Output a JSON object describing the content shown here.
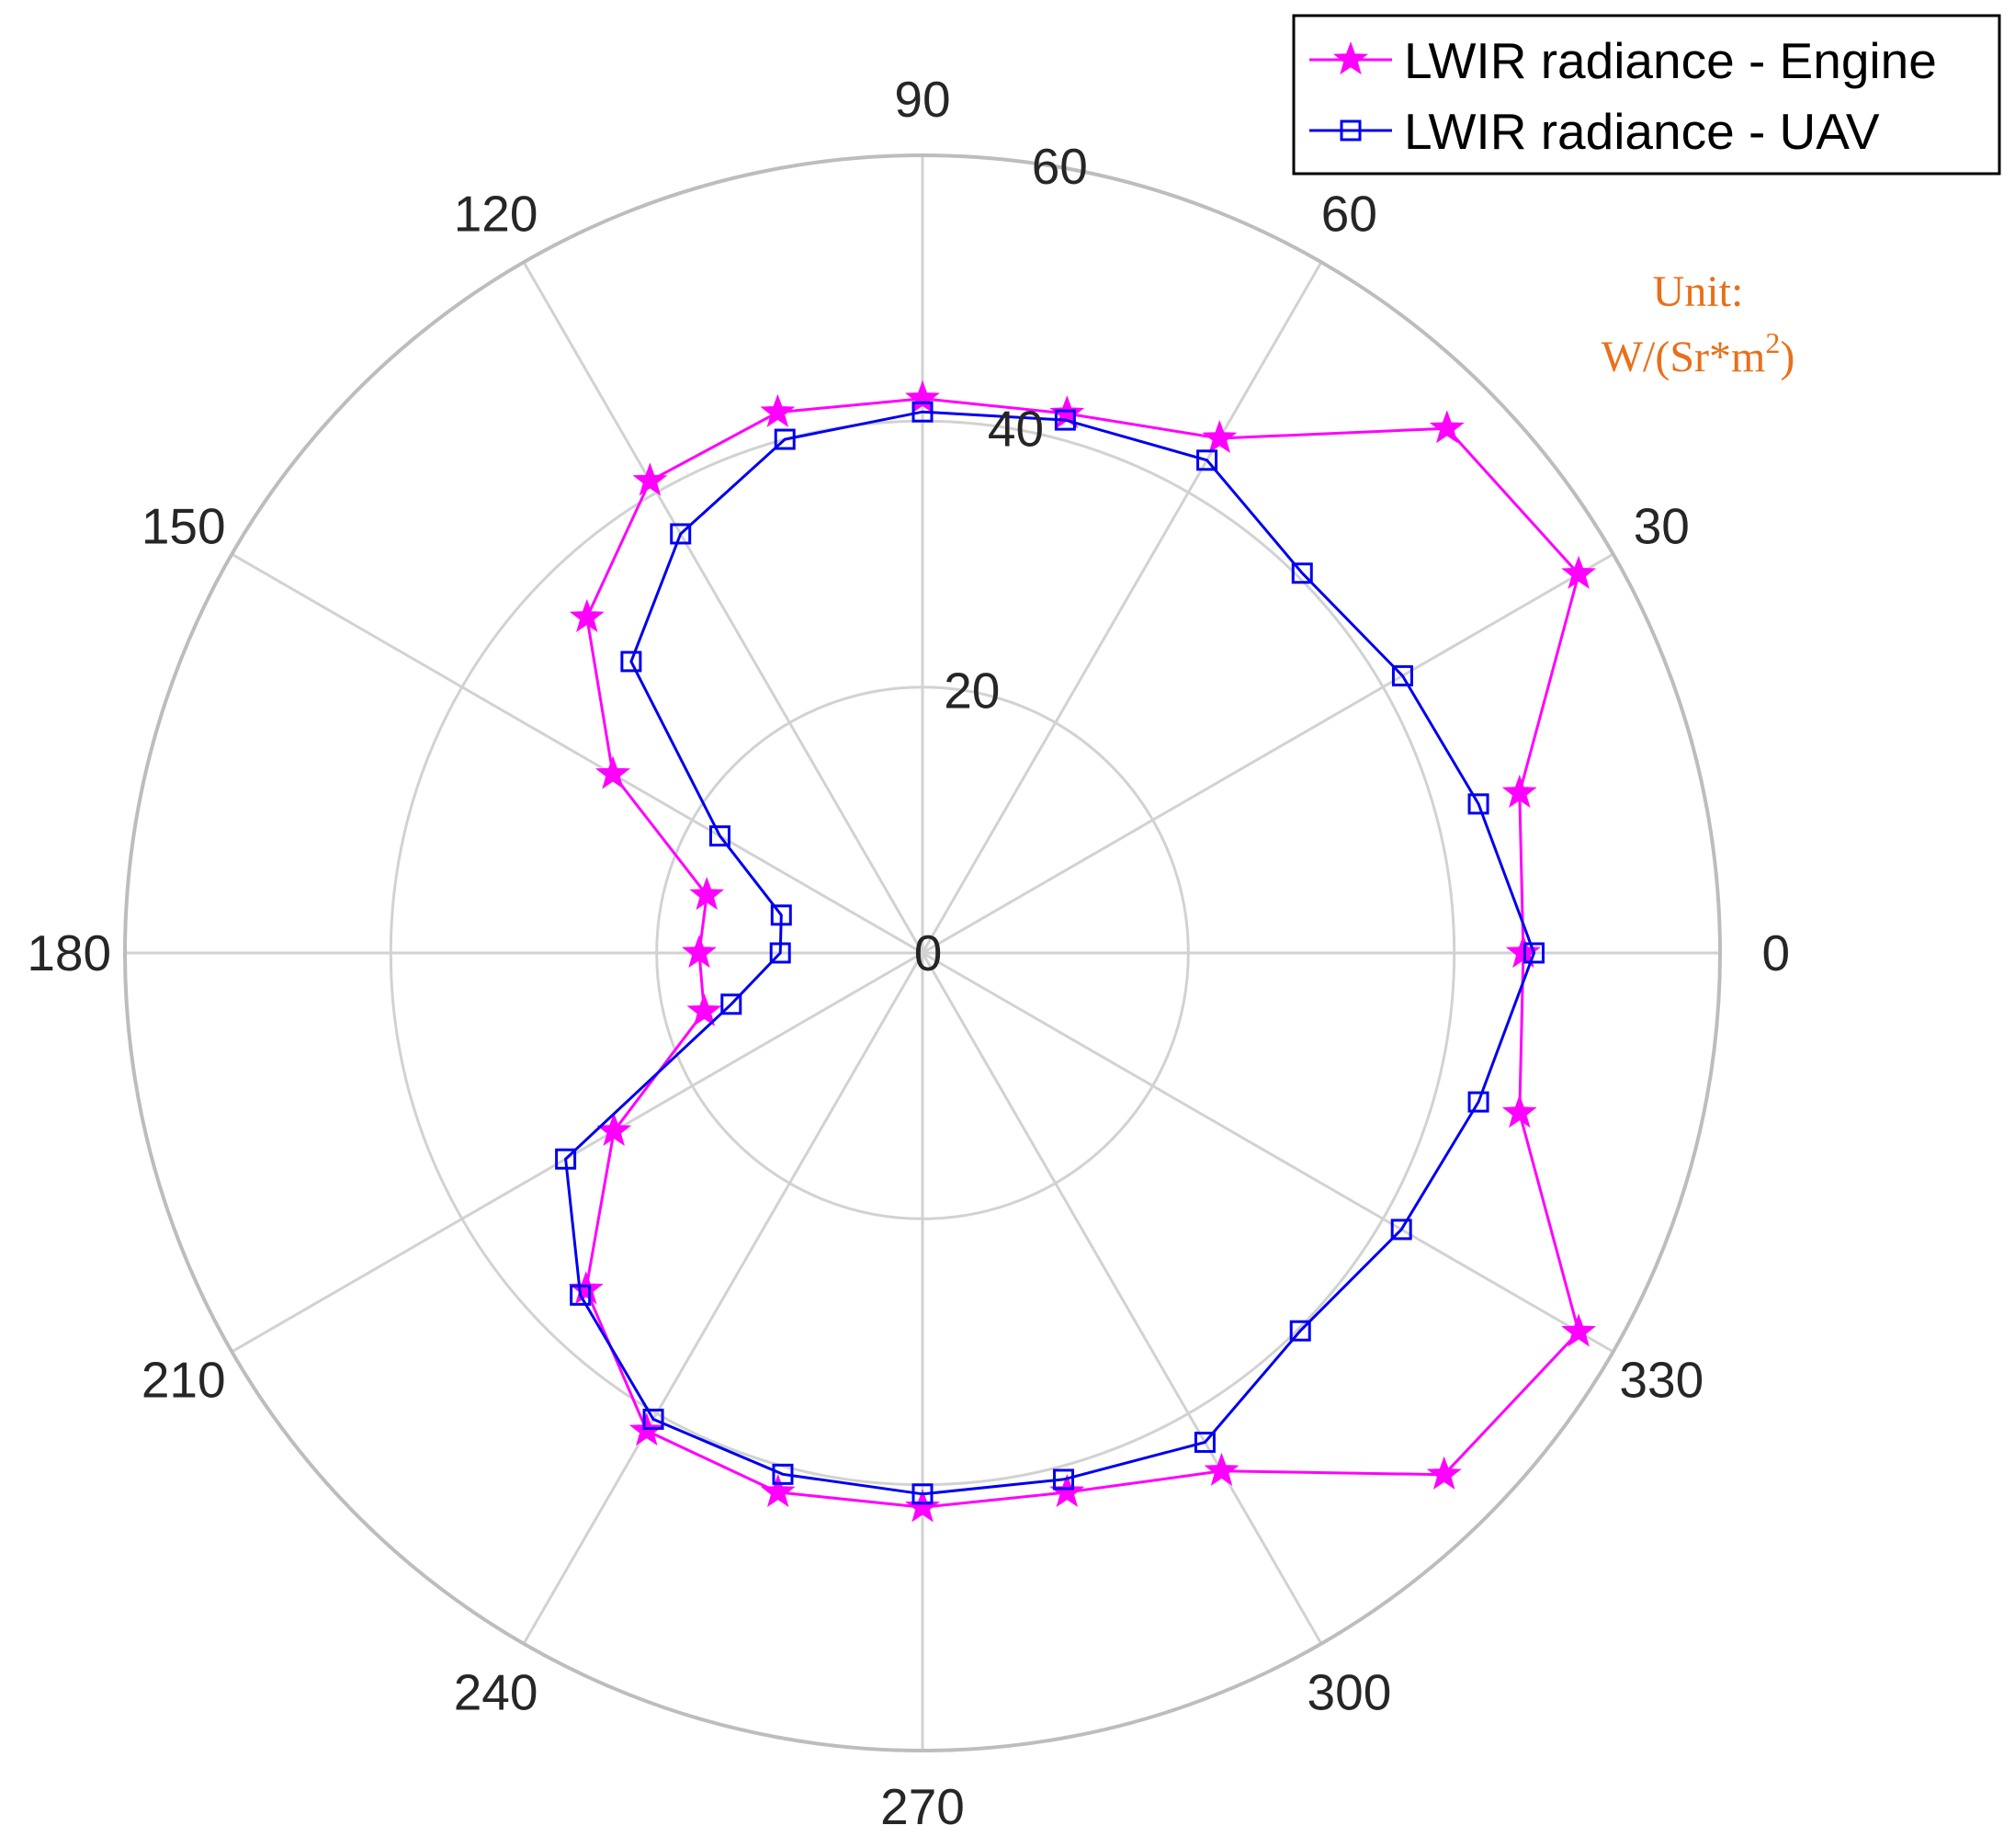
{
  "chart_data": {
    "type": "polar-line",
    "theta_unit": "degrees",
    "theta": [
      0,
      15,
      30,
      45,
      60,
      75,
      90,
      105,
      120,
      135,
      150,
      165,
      180,
      195,
      210,
      225,
      240,
      255,
      270,
      285,
      300,
      315,
      330,
      345
    ],
    "theta_ticks": [
      "0",
      "30",
      "60",
      "90",
      "120",
      "150",
      "180",
      "210",
      "240",
      "270",
      "300",
      "330"
    ],
    "r_ticks": [
      "0",
      "20",
      "40",
      "60"
    ],
    "rlim": [
      0,
      60
    ],
    "grid": true,
    "legend_position": "top-right",
    "series": [
      {
        "name": "LWIR radiance - Engine",
        "color": "#ff00ff",
        "marker": "star",
        "values": [
          45.2,
          46.5,
          57.0,
          55.8,
          44.7,
          42.0,
          41.7,
          42.1,
          41.0,
          35.7,
          26.9,
          16.8,
          16.8,
          17.0,
          26.8,
          35.8,
          41.5,
          42.0,
          41.7,
          42.0,
          45.0,
          55.5,
          57.0,
          46.5
        ]
      },
      {
        "name": "LWIR radiance - UAV",
        "color": "#0000ee",
        "marker": "square",
        "values": [
          46.0,
          43.3,
          41.7,
          40.4,
          42.8,
          41.5,
          40.7,
          40.0,
          36.4,
          31.0,
          17.6,
          11.0,
          10.7,
          14.9,
          31.0,
          36.4,
          40.5,
          40.6,
          40.7,
          41.0,
          42.5,
          40.2,
          41.6,
          43.3
        ]
      }
    ],
    "legend": [
      "LWIR radiance - Engine",
      "LWIR radiance - UAV"
    ],
    "annotation": {
      "line1": "Unit:",
      "line2_prefix": "W/(Sr*m",
      "line2_sup": "2",
      "line2_suffix": ")",
      "color": "#e8701a"
    }
  }
}
